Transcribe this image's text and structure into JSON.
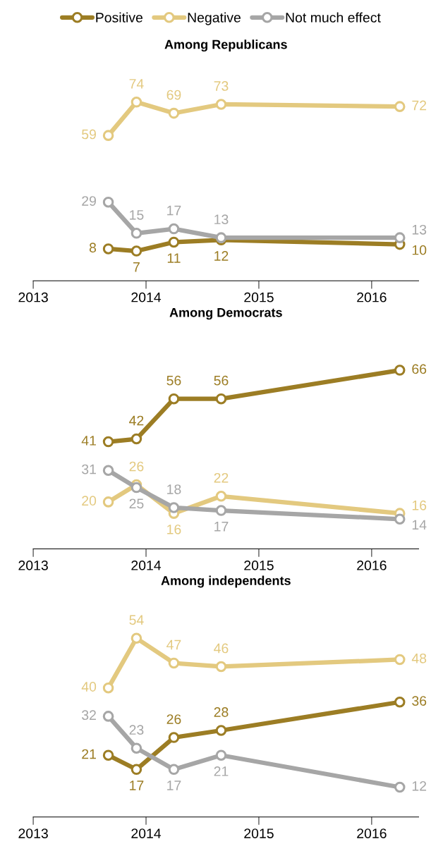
{
  "chart_data": [
    {
      "type": "line",
      "title": "Among Republicans",
      "x": [
        "2013-09",
        "2013-12",
        "2014-04",
        "2014-09",
        "2016-04"
      ],
      "xlim": [
        "2013",
        "2016-06"
      ],
      "xticks": [
        "2013",
        "2014",
        "2015",
        "2016"
      ],
      "tick_labels": "x",
      "data_labels": true,
      "legend": "top",
      "grid": false,
      "marker": "circle",
      "line_style": "solid",
      "series": [
        {
          "name": "Positive",
          "color": "#9c7d24",
          "values": [
            8,
            7,
            11,
            12,
            10
          ]
        },
        {
          "name": "Negative",
          "color": "#e3c97f",
          "values": [
            59,
            74,
            69,
            73,
            72
          ]
        },
        {
          "name": "Not much effect",
          "color": "#a6a6a6",
          "values": [
            29,
            15,
            17,
            13,
            13
          ]
        }
      ]
    },
    {
      "type": "line",
      "title": "Among Democrats",
      "x": [
        "2013-09",
        "2013-12",
        "2014-04",
        "2014-09",
        "2016-04"
      ],
      "xlim": [
        "2013",
        "2016-06"
      ],
      "xticks": [
        "2013",
        "2014",
        "2015",
        "2016"
      ],
      "tick_labels": "x",
      "data_labels": true,
      "grid": false,
      "marker": "circle",
      "line_style": "solid",
      "series": [
        {
          "color": "#9c7d24",
          "values": [
            41,
            42,
            56,
            56,
            66
          ]
        },
        {
          "color": "#e3c97f",
          "values": [
            20,
            26,
            16,
            22,
            16
          ]
        },
        {
          "color": "#a6a6a6",
          "values": [
            31,
            25,
            18,
            17,
            14
          ]
        }
      ]
    },
    {
      "type": "line",
      "title": "Among independents",
      "x": [
        "2013-09",
        "2013-12",
        "2014-04",
        "2014-09",
        "2016-04"
      ],
      "xlim": [
        "2013",
        "2016-06"
      ],
      "xticks": [
        "2013",
        "2014",
        "2015",
        "2016"
      ],
      "tick_labels": "x",
      "data_labels": true,
      "grid": false,
      "marker": "circle",
      "line_style": "solid",
      "series": [
        {
          "color": "#9c7d24",
          "values": [
            21,
            17,
            26,
            28,
            36
          ]
        },
        {
          "color": "#e3c97f",
          "values": [
            40,
            54,
            47,
            46,
            48
          ]
        },
        {
          "color": "#a6a6a6",
          "values": [
            32,
            23,
            17,
            21,
            12
          ]
        }
      ]
    }
  ]
}
